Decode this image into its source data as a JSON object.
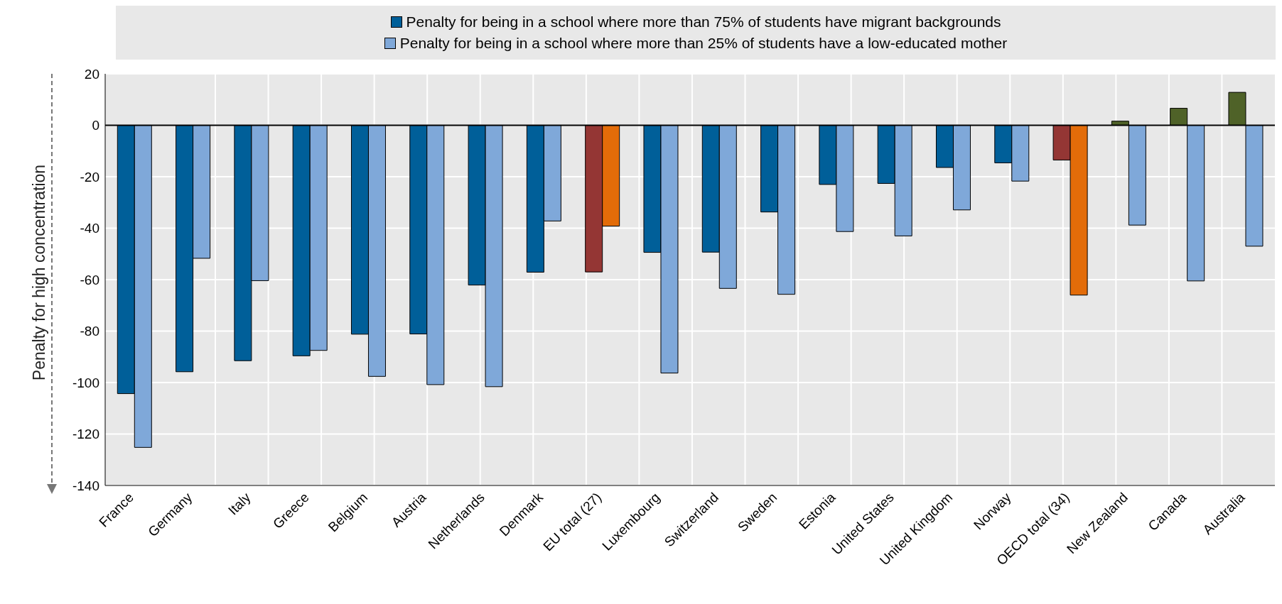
{
  "chart_data": {
    "type": "bar",
    "ylabel": "Penalty for high concentration",
    "categories": [
      "France",
      "Germany",
      "Italy",
      "Greece",
      "Belgium",
      "Austria",
      "Netherlands",
      "Denmark",
      "EU total (27)",
      "Luxembourg",
      "Switzerland",
      "Sweden",
      "Estonia",
      "United States",
      "United Kingdom",
      "Norway",
      "OECD total (34)",
      "New Zealand",
      "Canada",
      "Australia"
    ],
    "series": [
      {
        "name": "Penalty for being in a school where more than 75% of students have migrant backgrounds",
        "color": "#005f99",
        "colors": [
          "#005f99",
          "#005f99",
          "#005f99",
          "#005f99",
          "#005f99",
          "#005f99",
          "#005f99",
          "#005f99",
          "#943634",
          "#005f99",
          "#005f99",
          "#005f99",
          "#005f99",
          "#005f99",
          "#005f99",
          "#005f99",
          "#943634",
          "#4f6228",
          "#4f6228",
          "#4f6228"
        ],
        "values": [
          -104.3,
          -95.8,
          -91.5,
          -89.6,
          -81.2,
          -81.1,
          -62.1,
          -57.1,
          -57.0,
          -49.4,
          -49.3,
          -33.7,
          -23.0,
          -22.6,
          -16.4,
          -14.6,
          -13.5,
          1.6,
          6.6,
          12.8
        ]
      },
      {
        "name": "Penalty for being in a school where more than 25% of students have a low-educated mother",
        "color": "#7fa8d9",
        "colors": [
          "#7fa8d9",
          "#7fa8d9",
          "#7fa8d9",
          "#7fa8d9",
          "#7fa8d9",
          "#7fa8d9",
          "#7fa8d9",
          "#7fa8d9",
          "#e36c09",
          "#7fa8d9",
          "#7fa8d9",
          "#7fa8d9",
          "#7fa8d9",
          "#7fa8d9",
          "#7fa8d9",
          "#7fa8d9",
          "#e36c09",
          "#7fa8d9",
          "#7fa8d9",
          "#7fa8d9"
        ],
        "values": [
          -125.2,
          -51.7,
          -60.4,
          -87.5,
          -97.6,
          -100.8,
          -101.6,
          -37.2,
          -39.2,
          -96.3,
          -63.4,
          -65.7,
          -41.3,
          -43.0,
          -32.9,
          -21.7,
          -66.0,
          -38.8,
          -60.5,
          -47.0
        ]
      }
    ],
    "ylim": [
      -140,
      20
    ],
    "yticks": [
      -140,
      -120,
      -100,
      -80,
      -60,
      -40,
      -20,
      0,
      20
    ],
    "grid": true,
    "legend": "top"
  }
}
